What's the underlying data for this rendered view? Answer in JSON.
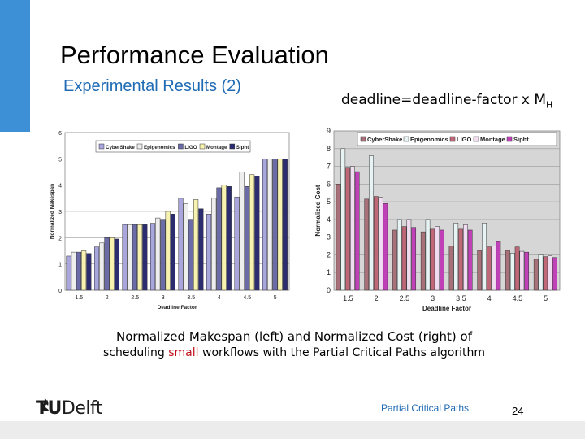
{
  "slide": {
    "title": "Performance Evaluation",
    "subtitle": "Experimental Results (2)",
    "deadline_prefix": "deadline=deadline-factor x M",
    "deadline_sub": "H",
    "caption_line1": "Normalized Makespan (left) and Normalized Cost (right) of",
    "caption_line2_a": "scheduling ",
    "caption_line2_highlight": "small",
    "caption_line2_b": " workflows with the Partial Critical Paths algorithm",
    "footer_text": "Partial Critical Paths",
    "page_number": "24",
    "logo_tu": "TU",
    "logo_delft": "Delft",
    "colors": {
      "accent_blue": "#3d8fd6",
      "link_blue": "#1e6ab4",
      "highlight_red": "#c0111b"
    }
  },
  "chart_data": [
    {
      "type": "bar",
      "title": "",
      "xlabel": "Deadline Factor",
      "ylabel": "Normalized Makespan",
      "ylim": [
        0,
        6
      ],
      "yticks": [
        0,
        1,
        2,
        3,
        4,
        5,
        6
      ],
      "categories": [
        "1.5",
        "2",
        "2.5",
        "3",
        "3.5",
        "4",
        "4.5",
        "5"
      ],
      "legend_position": "top",
      "series": [
        {
          "name": "CyberShake",
          "color": "#a9a6de",
          "values": [
            1.3,
            1.65,
            2.5,
            2.55,
            3.5,
            2.9,
            3.55,
            5.0
          ]
        },
        {
          "name": "Epigenomics",
          "color": "#eeeeee",
          "values": [
            1.45,
            1.8,
            2.5,
            2.75,
            3.3,
            3.5,
            4.5,
            5.0
          ]
        },
        {
          "name": "LIGO",
          "color": "#6b6ba8",
          "values": [
            1.45,
            2.0,
            2.5,
            2.7,
            2.7,
            3.9,
            3.95,
            5.0
          ]
        },
        {
          "name": "Montage",
          "color": "#f7f2b0",
          "values": [
            1.5,
            2.0,
            2.5,
            3.0,
            3.45,
            4.0,
            4.4,
            5.0
          ]
        },
        {
          "name": "Sipht",
          "color": "#2c2c70",
          "values": [
            1.4,
            1.95,
            2.5,
            2.9,
            3.1,
            3.95,
            4.35,
            5.0
          ]
        }
      ]
    },
    {
      "type": "bar",
      "title": "",
      "xlabel": "Deadline Factor",
      "ylabel": "Normalized Cost",
      "ylim": [
        0,
        9
      ],
      "yticks": [
        0,
        1,
        2,
        3,
        4,
        5,
        6,
        7,
        8,
        9
      ],
      "categories": [
        "1.5",
        "2",
        "2.5",
        "3",
        "3.5",
        "4",
        "4.5",
        "5"
      ],
      "legend_position": "top",
      "series": [
        {
          "name": "CyberShake",
          "color": "#a87078",
          "values": [
            6.0,
            5.15,
            3.4,
            3.3,
            2.5,
            2.25,
            2.25,
            1.75
          ]
        },
        {
          "name": "Epigenomics",
          "color": "#e8f4f4",
          "values": [
            8.0,
            7.6,
            4.0,
            4.0,
            3.8,
            3.8,
            2.1,
            2.0
          ]
        },
        {
          "name": "LIGO",
          "color": "#c06878",
          "values": [
            6.9,
            5.3,
            3.6,
            3.45,
            3.45,
            2.45,
            2.45,
            1.9
          ]
        },
        {
          "name": "Montage",
          "color": "#f0dcf0",
          "values": [
            7.0,
            5.25,
            4.0,
            3.6,
            3.7,
            2.5,
            2.2,
            1.95
          ]
        },
        {
          "name": "Sipht",
          "color": "#c040b8",
          "values": [
            6.7,
            4.9,
            3.55,
            3.4,
            3.4,
            2.75,
            2.15,
            1.85
          ]
        }
      ]
    }
  ]
}
